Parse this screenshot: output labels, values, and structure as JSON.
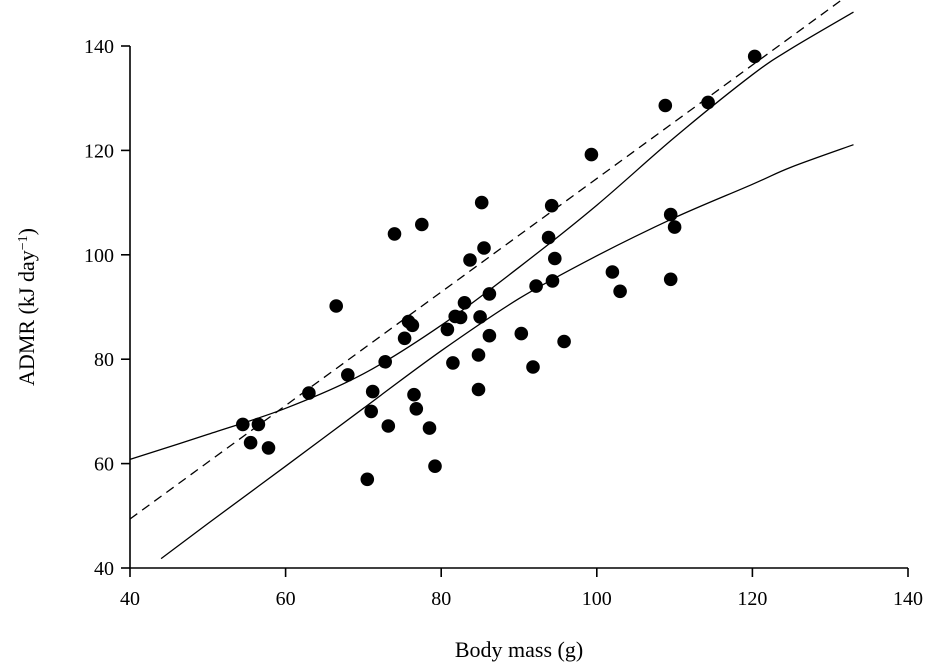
{
  "chart_data": {
    "type": "scatter",
    "title": "",
    "xlabel": "Body mass (g)",
    "ylabel_main": "ADMR (kJ day",
    "ylabel_sup": "−1",
    "ylabel_close": ")",
    "xlim": [
      40,
      140
    ],
    "ylim": [
      40,
      140
    ],
    "xticks": [
      40,
      60,
      80,
      100,
      120,
      140
    ],
    "yticks": [
      40,
      60,
      80,
      100,
      120,
      140
    ],
    "grid": false,
    "legend": "none",
    "series": [
      {
        "marker": "filled-circle",
        "points": [
          [
            54.5,
            67.5
          ],
          [
            55.5,
            64
          ],
          [
            56.5,
            67.5
          ],
          [
            57.8,
            63
          ],
          [
            63,
            73.5
          ],
          [
            66.5,
            90.2
          ],
          [
            68,
            77
          ],
          [
            70.5,
            57
          ],
          [
            71,
            70
          ],
          [
            71.2,
            73.8
          ],
          [
            72.8,
            79.5
          ],
          [
            73.2,
            67.2
          ],
          [
            74,
            104
          ],
          [
            75.3,
            84
          ],
          [
            75.8,
            87.2
          ],
          [
            76.3,
            86.5
          ],
          [
            76.5,
            73.2
          ],
          [
            76.8,
            70.5
          ],
          [
            77.5,
            105.8
          ],
          [
            78.5,
            66.8
          ],
          [
            79.2,
            59.5
          ],
          [
            80.8,
            85.7
          ],
          [
            81.5,
            79.3
          ],
          [
            81.8,
            88.2
          ],
          [
            82.5,
            88
          ],
          [
            83,
            90.8
          ],
          [
            83.7,
            99
          ],
          [
            84.8,
            80.8
          ],
          [
            84.8,
            74.2
          ],
          [
            85,
            88.1
          ],
          [
            85.2,
            110
          ],
          [
            85.5,
            101.3
          ],
          [
            86.2,
            92.5
          ],
          [
            86.2,
            84.5
          ],
          [
            90.3,
            84.9
          ],
          [
            91.8,
            78.5
          ],
          [
            92.2,
            94
          ],
          [
            93.8,
            103.3
          ],
          [
            94.2,
            109.4
          ],
          [
            94.3,
            95
          ],
          [
            94.6,
            99.3
          ],
          [
            95.8,
            83.4
          ],
          [
            99.3,
            119.2
          ],
          [
            102,
            96.7
          ],
          [
            103,
            93
          ],
          [
            108.8,
            128.6
          ],
          [
            109.5,
            107.7
          ],
          [
            109.5,
            95.3
          ],
          [
            110,
            105.3
          ],
          [
            114.3,
            129.2
          ],
          [
            120.3,
            138
          ]
        ]
      }
    ],
    "regression": {
      "style": "dashed",
      "x_range": [
        40,
        133
      ],
      "intercept": 5.9,
      "slope": 1.0871
    },
    "confidence_band": {
      "style": "solid",
      "x_range_upper": [
        40,
        133
      ],
      "x_range_lower": [
        44,
        133
      ],
      "upper": [
        [
          40,
          60.8
        ],
        [
          50,
          65.6
        ],
        [
          60,
          70.6
        ],
        [
          70,
          77.2
        ],
        [
          80,
          86.5
        ],
        [
          90,
          97.6
        ],
        [
          100,
          109.5
        ],
        [
          110,
          122.5
        ],
        [
          120,
          134.5
        ],
        [
          125,
          139.5
        ],
        [
          133,
          146.5
        ]
      ],
      "lower": [
        [
          44,
          41.8
        ],
        [
          50,
          48.5
        ],
        [
          60,
          59.5
        ],
        [
          70,
          70.6
        ],
        [
          80,
          81.6
        ],
        [
          90,
          91.6
        ],
        [
          100,
          99.8
        ],
        [
          110,
          107.1
        ],
        [
          120,
          113.5
        ],
        [
          125,
          116.8
        ],
        [
          133,
          121.1
        ]
      ]
    }
  }
}
